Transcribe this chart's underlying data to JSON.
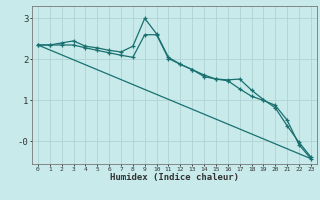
{
  "xlabel": "Humidex (Indice chaleur)",
  "background_color": "#c8eaea",
  "grid_color": "#b0d4d4",
  "line_color": "#1a7070",
  "xlim": [
    -0.5,
    23.5
  ],
  "ylim": [
    -0.55,
    3.3
  ],
  "line1_x": [
    0,
    1,
    2,
    3,
    4,
    5,
    6,
    7,
    8,
    9,
    10,
    11,
    12,
    13,
    14,
    15,
    16,
    17,
    18,
    19,
    20,
    21,
    22,
    23
  ],
  "line1_y": [
    2.35,
    2.35,
    2.4,
    2.45,
    2.32,
    2.28,
    2.22,
    2.18,
    2.32,
    3.0,
    2.62,
    2.05,
    1.88,
    1.75,
    1.58,
    1.52,
    1.5,
    1.52,
    1.25,
    1.02,
    0.82,
    0.38,
    -0.02,
    -0.38
  ],
  "line2_x": [
    0,
    1,
    2,
    3,
    4,
    5,
    6,
    7,
    8,
    9,
    10,
    11,
    12,
    13,
    14,
    15,
    16,
    17,
    18,
    19,
    20,
    21,
    22,
    23
  ],
  "line2_y": [
    2.35,
    2.35,
    2.35,
    2.35,
    2.28,
    2.22,
    2.16,
    2.1,
    2.05,
    2.6,
    2.6,
    2.02,
    1.88,
    1.75,
    1.62,
    1.52,
    1.48,
    1.28,
    1.1,
    1.0,
    0.88,
    0.52,
    -0.08,
    -0.42
  ],
  "line3_x": [
    0,
    23
  ],
  "line3_y": [
    2.35,
    -0.42
  ],
  "xticks": [
    0,
    1,
    2,
    3,
    4,
    5,
    6,
    7,
    8,
    9,
    10,
    11,
    12,
    13,
    14,
    15,
    16,
    17,
    18,
    19,
    20,
    21,
    22,
    23
  ],
  "yticks": [
    0,
    1,
    2,
    3
  ],
  "ytick_labels": [
    "-0",
    "1",
    "2",
    "3"
  ]
}
